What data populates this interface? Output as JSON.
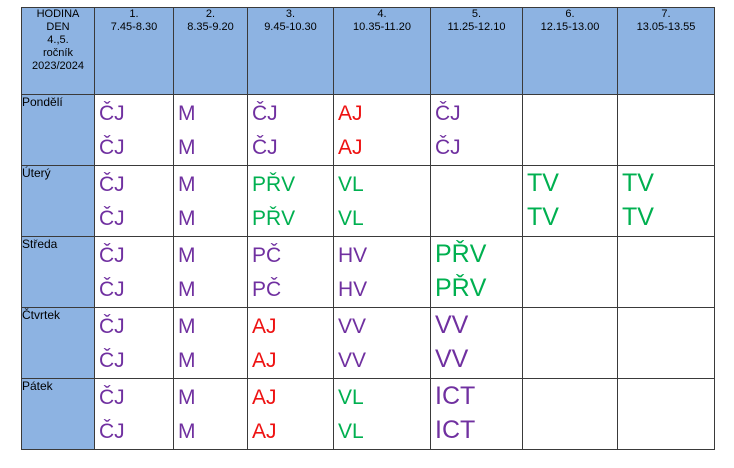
{
  "colors": {
    "header_bg": "#8db3e2",
    "purple": "#7030a0",
    "red": "#ee1111",
    "green": "#00b050"
  },
  "corner": [
    "HODINA",
    "DEN",
    "4.,5.",
    "ročník",
    "2023/2024"
  ],
  "periods": [
    {
      "num": "1.",
      "time": "7.45-8.30"
    },
    {
      "num": "2.",
      "time": "8.35-9.20"
    },
    {
      "num": "3.",
      "time": "9.45-10.30"
    },
    {
      "num": "4.",
      "time": "10.35-11.20"
    },
    {
      "num": "5.",
      "time": "11.25-12.10"
    },
    {
      "num": "6.",
      "time": "12.15-13.00"
    },
    {
      "num": "7.",
      "time": "13.05-13.55"
    }
  ],
  "days": [
    {
      "name": "Pondělí",
      "cells": [
        {
          "lines": [
            "ČJ",
            "ČJ"
          ],
          "color": "purple",
          "size": "std"
        },
        {
          "lines": [
            "M",
            "M"
          ],
          "color": "purple",
          "size": "std"
        },
        {
          "lines": [
            "ČJ",
            "ČJ"
          ],
          "color": "purple",
          "size": "std"
        },
        {
          "lines": [
            "AJ",
            "AJ"
          ],
          "color": "red",
          "size": "std"
        },
        {
          "lines": [
            "ČJ",
            "ČJ"
          ],
          "color": "purple",
          "size": "std"
        },
        {
          "lines": [],
          "color": "",
          "size": "std"
        },
        {
          "lines": [],
          "color": "",
          "size": "std"
        }
      ]
    },
    {
      "name": "Úterý",
      "cells": [
        {
          "lines": [
            "ČJ",
            "ČJ"
          ],
          "color": "purple",
          "size": "std"
        },
        {
          "lines": [
            "M",
            "M"
          ],
          "color": "purple",
          "size": "std"
        },
        {
          "lines": [
            "PŘV",
            "PŘV"
          ],
          "color": "green",
          "size": "std"
        },
        {
          "lines": [
            "VL",
            "VL"
          ],
          "color": "green",
          "size": "std"
        },
        {
          "lines": [],
          "color": "",
          "size": "std"
        },
        {
          "lines": [
            "TV",
            "TV"
          ],
          "color": "green",
          "size": "big"
        },
        {
          "lines": [
            "TV",
            "TV"
          ],
          "color": "green",
          "size": "big"
        }
      ]
    },
    {
      "name": "Středa",
      "cells": [
        {
          "lines": [
            "ČJ",
            "ČJ"
          ],
          "color": "purple",
          "size": "std"
        },
        {
          "lines": [
            "M",
            "M"
          ],
          "color": "purple",
          "size": "std"
        },
        {
          "lines": [
            "PČ",
            "PČ"
          ],
          "color": "purple",
          "size": "std"
        },
        {
          "lines": [
            "HV",
            "HV"
          ],
          "color": "purple",
          "size": "std"
        },
        {
          "lines": [
            "PŘV",
            "PŘV"
          ],
          "color": "green",
          "size": "big"
        },
        {
          "lines": [],
          "color": "",
          "size": "std"
        },
        {
          "lines": [],
          "color": "",
          "size": "std"
        }
      ]
    },
    {
      "name": "Čtvrtek",
      "cells": [
        {
          "lines": [
            "ČJ",
            "ČJ"
          ],
          "color": "purple",
          "size": "std"
        },
        {
          "lines": [
            "M",
            "M"
          ],
          "color": "purple",
          "size": "std"
        },
        {
          "lines": [
            "AJ",
            "AJ"
          ],
          "color": "red",
          "size": "std"
        },
        {
          "lines": [
            "VV",
            "VV"
          ],
          "color": "purple",
          "size": "std"
        },
        {
          "lines": [
            "VV",
            "VV"
          ],
          "color": "purple",
          "size": "big"
        },
        {
          "lines": [],
          "color": "",
          "size": "std"
        },
        {
          "lines": [],
          "color": "",
          "size": "std"
        }
      ]
    },
    {
      "name": "Pátek",
      "cells": [
        {
          "lines": [
            "ČJ",
            "ČJ"
          ],
          "color": "purple",
          "size": "std"
        },
        {
          "lines": [
            "M",
            "M"
          ],
          "color": "purple",
          "size": "std"
        },
        {
          "lines": [
            "AJ",
            "AJ"
          ],
          "color": "red",
          "size": "std"
        },
        {
          "lines": [
            "VL",
            "VL"
          ],
          "color": "green",
          "size": "std"
        },
        {
          "lines": [
            "ICT",
            "ICT"
          ],
          "color": "purple",
          "size": "big"
        },
        {
          "lines": [],
          "color": "",
          "size": "std"
        },
        {
          "lines": [],
          "color": "",
          "size": "std"
        }
      ]
    }
  ]
}
